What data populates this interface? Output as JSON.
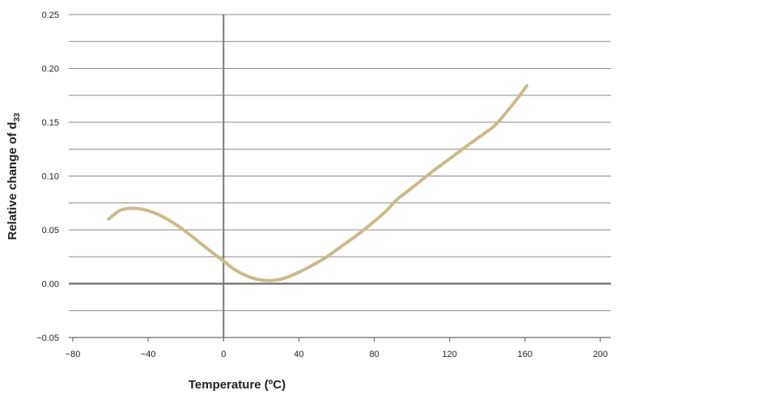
{
  "chart_data": {
    "type": "line",
    "title": "",
    "xlabel": "Temperature (ºC)",
    "ylabel_main": "Relative change of d",
    "ylabel_sub": "33",
    "xlim": [
      -80,
      200
    ],
    "ylim": [
      -0.05,
      0.25
    ],
    "x_ticks": [
      -80,
      -40,
      0,
      40,
      80,
      120,
      160,
      200
    ],
    "x_tick_labels": [
      "−80",
      "−40",
      "0",
      "40",
      "80",
      "120",
      "160",
      "200"
    ],
    "y_ticks": [
      -0.05,
      0.0,
      0.05,
      0.1,
      0.15,
      0.2,
      0.25
    ],
    "y_tick_labels": [
      "−0.05",
      "0.00",
      "0.05",
      "0.10",
      "0.15",
      "0.20",
      "0.25"
    ],
    "y_minor_gridlines": [
      -0.025,
      0.025,
      0.075,
      0.125,
      0.175,
      0.225
    ],
    "grid": true,
    "line_color": "#cdb98a",
    "series": [
      {
        "x": [
          -61,
          -55,
          -49,
          -43,
          -37,
          -30,
          -22,
          -14,
          -6,
          0,
          6,
          14,
          22,
          30,
          38,
          46,
          54,
          62,
          70,
          78,
          86,
          92,
          100,
          110,
          120,
          130,
          138,
          144,
          150,
          156,
          161
        ],
        "values": [
          0.06,
          0.068,
          0.07,
          0.069,
          0.066,
          0.06,
          0.051,
          0.04,
          0.029,
          0.021,
          0.013,
          0.006,
          0.003,
          0.004,
          0.009,
          0.016,
          0.024,
          0.034,
          0.044,
          0.055,
          0.067,
          0.078,
          0.089,
          0.103,
          0.116,
          0.129,
          0.139,
          0.147,
          0.159,
          0.172,
          0.184
        ]
      }
    ]
  }
}
